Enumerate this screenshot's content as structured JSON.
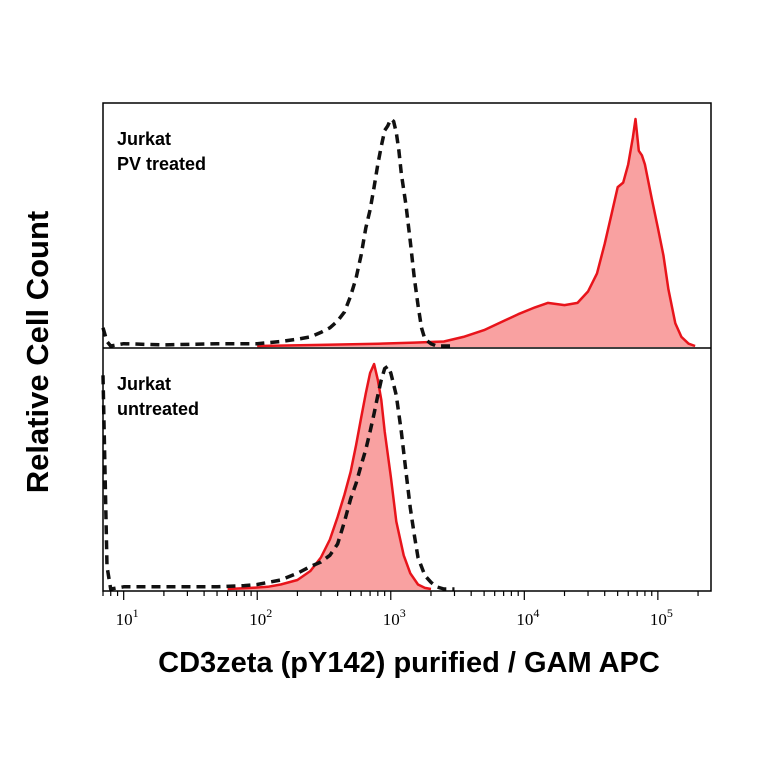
{
  "chart_data": {
    "type": "area",
    "ylabel": "Relative Cell Count",
    "xlabel": "CD3zeta (pY142) purified / GAM APC",
    "x_scale": "log",
    "xlim": [
      7,
      250000
    ],
    "x_ticks": [
      {
        "base": "10",
        "exp": "1",
        "value": 10
      },
      {
        "base": "10",
        "exp": "2",
        "value": 100
      },
      {
        "base": "10",
        "exp": "3",
        "value": 1000
      },
      {
        "base": "10",
        "exp": "4",
        "value": 10000
      },
      {
        "base": "10",
        "exp": "5",
        "value": 100000
      }
    ],
    "panels": [
      {
        "label_lines": [
          "Jurkat",
          "PV treated"
        ],
        "ylim": [
          0,
          1
        ],
        "series": [
          {
            "style": "filled-solid",
            "color": "#e8141b",
            "fill": "#f9a1a1",
            "x": [
              100,
              300,
              800,
              1500,
              2500,
              3500,
              5000,
              7000,
              9000,
              12000,
              15000,
              20000,
              25000,
              30000,
              35000,
              40000,
              45000,
              50000,
              55000,
              60000,
              65000,
              68000,
              72000,
              76000,
              80000,
              90000,
              100000,
              110000,
              120000,
              135000,
              150000,
              170000,
              190000
            ],
            "y": [
              0.0,
              0.005,
              0.01,
              0.015,
              0.02,
              0.04,
              0.07,
              0.11,
              0.14,
              0.17,
              0.19,
              0.18,
              0.19,
              0.24,
              0.32,
              0.45,
              0.58,
              0.7,
              0.72,
              0.8,
              0.92,
              1.0,
              0.86,
              0.84,
              0.8,
              0.65,
              0.52,
              0.4,
              0.25,
              0.1,
              0.04,
              0.01,
              0.0
            ]
          },
          {
            "style": "dashed",
            "color": "#111111",
            "x": [
              7,
              7.5,
              8,
              10,
              20,
              50,
              100,
              150,
              200,
              250,
              300,
              350,
              400,
              450,
              500,
              550,
              600,
              650,
              700,
              750,
              800,
              850,
              900,
              950,
              1000,
              1050,
              1100,
              1150,
              1200,
              1300,
              1400,
              1500,
              1600,
              1700,
              1800,
              2000,
              2200,
              2500,
              3000
            ],
            "y": [
              0.08,
              0.02,
              0.0,
              0.01,
              0.005,
              0.01,
              0.01,
              0.02,
              0.03,
              0.04,
              0.06,
              0.08,
              0.11,
              0.15,
              0.22,
              0.3,
              0.4,
              0.52,
              0.6,
              0.7,
              0.8,
              0.88,
              0.95,
              0.97,
              1.0,
              0.99,
              0.94,
              0.86,
              0.76,
              0.62,
              0.46,
              0.3,
              0.18,
              0.08,
              0.03,
              0.01,
              0.0,
              0.0,
              0.0
            ]
          }
        ]
      },
      {
        "label_lines": [
          "Jurkat",
          "untreated"
        ],
        "ylim": [
          0,
          1
        ],
        "series": [
          {
            "style": "filled-solid",
            "color": "#e8141b",
            "fill": "#f9a1a1",
            "x": [
              60,
              90,
              120,
              150,
              200,
              250,
              300,
              350,
              400,
              450,
              500,
              550,
              600,
              650,
              700,
              750,
              800,
              850,
              900,
              1000,
              1100,
              1250,
              1400,
              1600,
              1800,
              2000
            ],
            "y": [
              0.0,
              0.005,
              0.01,
              0.02,
              0.04,
              0.08,
              0.14,
              0.22,
              0.32,
              0.42,
              0.52,
              0.64,
              0.76,
              0.87,
              0.96,
              1.0,
              0.93,
              0.84,
              0.7,
              0.5,
              0.3,
              0.15,
              0.07,
              0.02,
              0.005,
              0.0
            ]
          },
          {
            "style": "dashed",
            "color": "#111111",
            "x": [
              7,
              7.5,
              8,
              10,
              20,
              50,
              80,
              100,
              150,
              200,
              250,
              300,
              350,
              400,
              450,
              500,
              550,
              600,
              650,
              700,
              750,
              800,
              850,
              900,
              950,
              1000,
              1050,
              1100,
              1200,
              1300,
              1400,
              1500,
              1600,
              1800,
              2000,
              2200,
              2500,
              3000
            ],
            "y": [
              0.95,
              0.1,
              0.0,
              0.01,
              0.01,
              0.01,
              0.015,
              0.02,
              0.04,
              0.07,
              0.1,
              0.12,
              0.15,
              0.2,
              0.3,
              0.4,
              0.47,
              0.55,
              0.62,
              0.7,
              0.78,
              0.86,
              0.93,
              0.98,
              0.99,
              0.96,
              0.91,
              0.86,
              0.7,
              0.52,
              0.36,
              0.24,
              0.14,
              0.06,
              0.03,
              0.01,
              0.0,
              0.0
            ]
          }
        ]
      }
    ]
  }
}
